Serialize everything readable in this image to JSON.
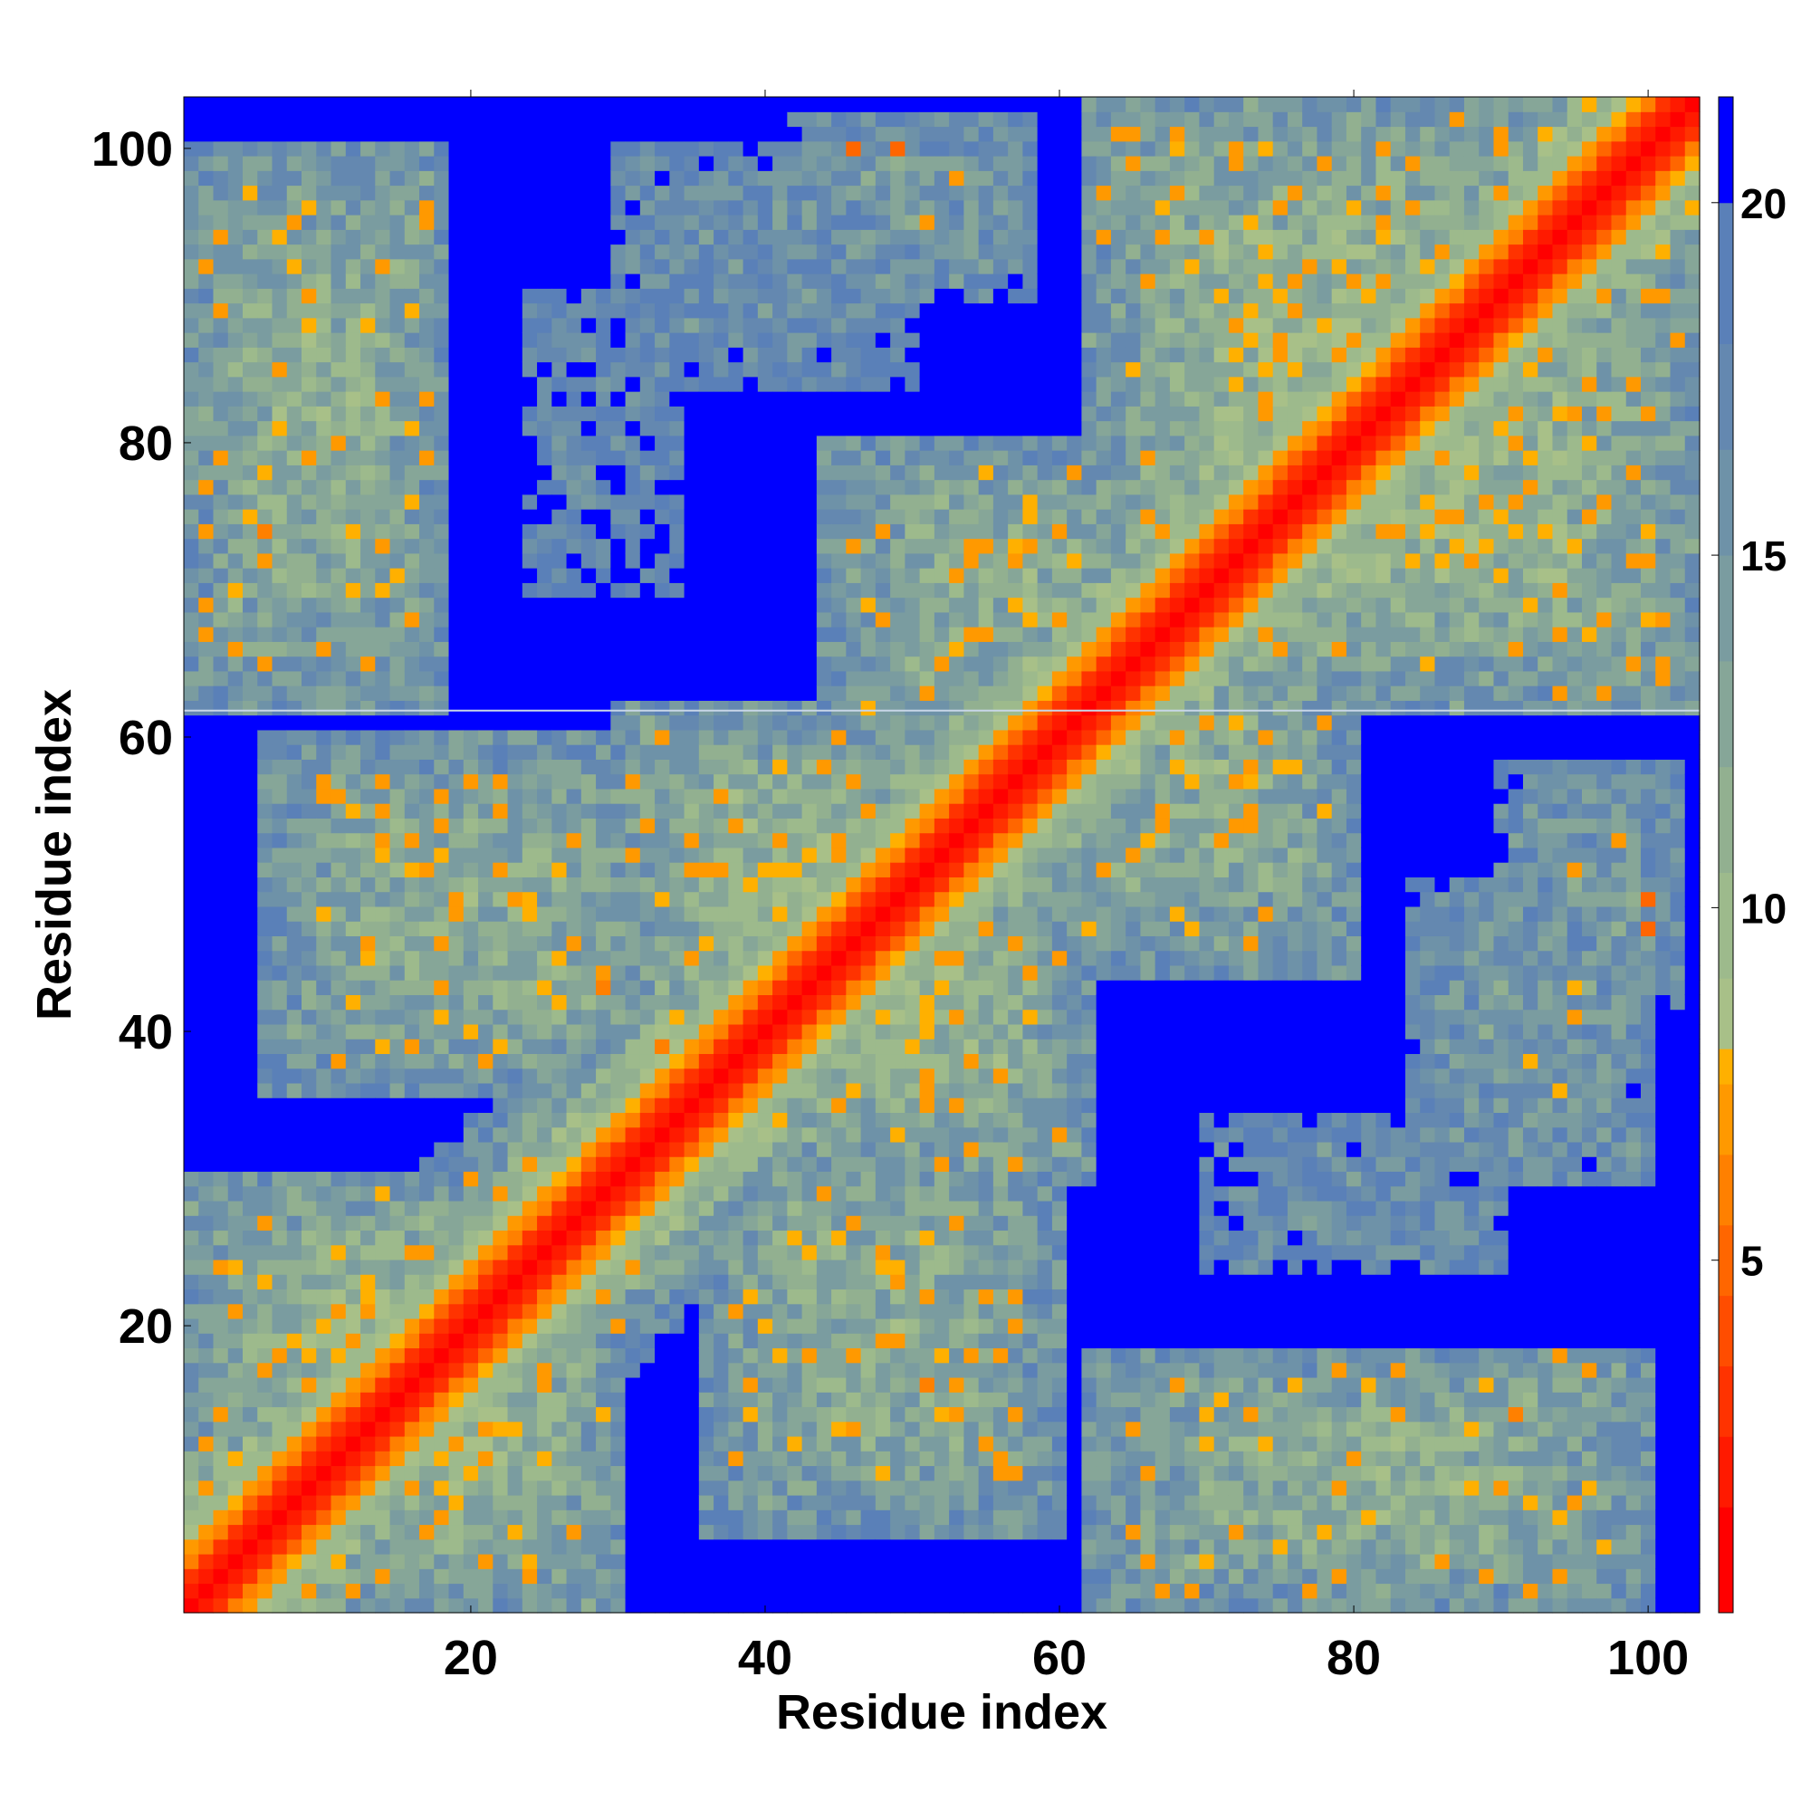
{
  "chart_data": {
    "type": "heatmap",
    "title": "",
    "xlabel": "Residue index",
    "ylabel": "Residue index",
    "n_residues": 103,
    "xlim": [
      1,
      103
    ],
    "ylim": [
      1,
      103
    ],
    "x_ticks": [
      20,
      40,
      60,
      80,
      100
    ],
    "y_ticks": [
      20,
      40,
      60,
      80,
      100
    ],
    "colorbar": {
      "range": [
        0,
        21.5
      ],
      "ticks": [
        5,
        10,
        15,
        20
      ],
      "bins": [
        {
          "to": 1.5,
          "color": "#ff0000"
        },
        {
          "to": 2.5,
          "color": "#ff1a00"
        },
        {
          "to": 3.5,
          "color": "#ff3300"
        },
        {
          "to": 4.5,
          "color": "#ff4d00"
        },
        {
          "to": 5.5,
          "color": "#ff6600"
        },
        {
          "to": 6.5,
          "color": "#ff8000"
        },
        {
          "to": 7.5,
          "color": "#ff9900"
        },
        {
          "to": 8.0,
          "color": "#ffb000"
        },
        {
          "to": 9.0,
          "color": "#a8c088"
        },
        {
          "to": 10.5,
          "color": "#9dba8c"
        },
        {
          "to": 12.0,
          "color": "#92b090"
        },
        {
          "to": 13.5,
          "color": "#86a698"
        },
        {
          "to": 15.0,
          "color": "#7a9ca0"
        },
        {
          "to": 16.5,
          "color": "#6e92a8"
        },
        {
          "to": 18.0,
          "color": "#6488b0"
        },
        {
          "to": 20.0,
          "color": "#5a80b8"
        },
        {
          "to": 21.5,
          "color": "#0000ff"
        }
      ]
    },
    "blocks": [
      {
        "x": [
          1,
          30
        ],
        "y": [
          1,
          30
        ],
        "strength": 1.0
      },
      {
        "x": [
          30,
          62
        ],
        "y": [
          30,
          62
        ],
        "strength": 1.0
      },
      {
        "x": [
          62,
          103
        ],
        "y": [
          62,
          103
        ],
        "strength": 1.0
      },
      {
        "x": [
          1,
          18
        ],
        "y": [
          62,
          100
        ],
        "strength": 0.85
      },
      {
        "x": [
          62,
          100
        ],
        "y": [
          1,
          18
        ],
        "strength": 0.85
      },
      {
        "x": [
          6,
          34
        ],
        "y": [
          36,
          60
        ],
        "strength": 0.8
      },
      {
        "x": [
          36,
          60
        ],
        "y": [
          6,
          34
        ],
        "strength": 0.8
      },
      {
        "x": [
          44,
          70
        ],
        "y": [
          60,
          80
        ],
        "strength": 0.8
      },
      {
        "x": [
          60,
          80
        ],
        "y": [
          44,
          70
        ],
        "strength": 0.8
      },
      {
        "x": [
          42,
          58
        ],
        "y": [
          90,
          102
        ],
        "strength": 0.55
      },
      {
        "x": [
          90,
          102
        ],
        "y": [
          42,
          58
        ],
        "strength": 0.55
      },
      {
        "x": [
          66,
          98
        ],
        "y": [
          80,
          100
        ],
        "strength": 0.65
      },
      {
        "x": [
          80,
          100
        ],
        "y": [
          66,
          98
        ],
        "strength": 0.65
      },
      {
        "x": [
          84,
          100
        ],
        "y": [
          30,
          50
        ],
        "strength": 0.55
      },
      {
        "x": [
          30,
          50
        ],
        "y": [
          84,
          100
        ],
        "strength": 0.4
      },
      {
        "x": [
          70,
          90
        ],
        "y": [
          24,
          34
        ],
        "strength": 0.4
      },
      {
        "x": [
          24,
          34
        ],
        "y": [
          70,
          90
        ],
        "strength": 0.3
      }
    ],
    "hotspots": [
      {
        "x": 46,
        "y": 100,
        "value": 5
      },
      {
        "x": 49,
        "y": 100,
        "value": 5
      },
      {
        "x": 100,
        "y": 47,
        "value": 5
      },
      {
        "x": 100,
        "y": 49,
        "value": 5
      },
      {
        "x": 2,
        "y": 74,
        "value": 7
      },
      {
        "x": 6,
        "y": 74,
        "value": 6
      },
      {
        "x": 7,
        "y": 85,
        "value": 7
      },
      {
        "x": 17,
        "y": 95,
        "value": 7
      },
      {
        "x": 14,
        "y": 92,
        "value": 7
      },
      {
        "x": 14,
        "y": 55,
        "value": 7
      },
      {
        "x": 17,
        "y": 51,
        "value": 7
      },
      {
        "x": 29,
        "y": 43,
        "value": 6
      },
      {
        "x": 33,
        "y": 39,
        "value": 6
      },
      {
        "x": 48,
        "y": 25,
        "value": 7
      },
      {
        "x": 51,
        "y": 16,
        "value": 6
      },
      {
        "x": 55,
        "y": 12,
        "value": 7
      },
      {
        "x": 86,
        "y": 4,
        "value": 7
      },
      {
        "x": 91,
        "y": 14,
        "value": 6
      },
      {
        "x": 94,
        "y": 18,
        "value": 7
      },
      {
        "x": 70,
        "y": 61,
        "value": 7
      },
      {
        "x": 72,
        "y": 57,
        "value": 7
      },
      {
        "x": 66,
        "y": 69,
        "value": 6
      },
      {
        "x": 48,
        "y": 68,
        "value": 7
      },
      {
        "x": 84,
        "y": 80,
        "value": 7
      },
      {
        "x": 80,
        "y": 87,
        "value": 7
      },
      {
        "x": 89,
        "y": 76,
        "value": 7
      }
    ]
  }
}
